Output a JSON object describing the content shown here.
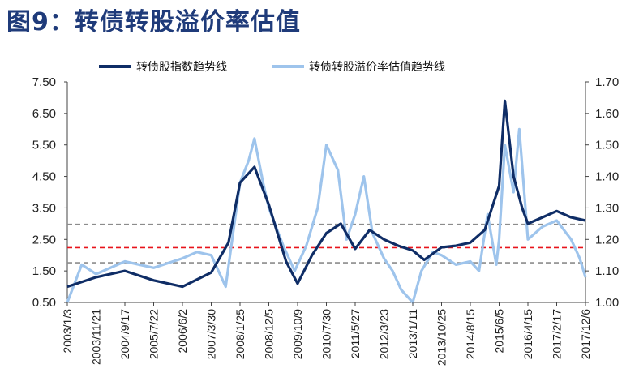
{
  "title": "图9：转债转股溢价率估值",
  "chart_data": {
    "type": "line",
    "legend": [
      "转债股指数趋势线",
      "转债转股溢价率估值趋势线"
    ],
    "legend_position": "top",
    "colors": {
      "series1": "#0f2d66",
      "series2": "#9ec4ec",
      "ref_gray": "#8c8c8c",
      "ref_red": "#e8141b"
    },
    "x_labels": [
      "2003/1/3",
      "2003/11/21",
      "2004/9/17",
      "2005/7/22",
      "2006/6/2",
      "2007/3/30",
      "2008/1/25",
      "2008/12/5",
      "2009/10/9",
      "2010/7/30",
      "2011/5/27",
      "2012/3/23",
      "2013/1/11",
      "2013/10/25",
      "2014/8/15",
      "2015/6/5",
      "2016/4/15",
      "2017/2/17",
      "2017/12/6"
    ],
    "y_left": {
      "ticks": [
        "7.50",
        "6.50",
        "5.50",
        "4.50",
        "3.50",
        "2.50",
        "1.50",
        "0.50"
      ],
      "range": [
        0.5,
        7.5
      ]
    },
    "y_right": {
      "ticks": [
        "1.70",
        "1.60",
        "1.50",
        "1.40",
        "1.30",
        "1.20",
        "1.10",
        "1.00"
      ],
      "range": [
        1.0,
        1.7
      ]
    },
    "reference_lines_left_axis": [
      {
        "value": 2.98,
        "color": "gray"
      },
      {
        "value": 2.24,
        "color": "red"
      },
      {
        "value": 1.76,
        "color": "gray"
      }
    ],
    "series": [
      {
        "name": "转债股指数趋势线",
        "axis": "left",
        "points": [
          [
            0,
            1.0
          ],
          [
            1,
            1.3
          ],
          [
            2,
            1.5
          ],
          [
            3,
            1.2
          ],
          [
            4,
            1.0
          ],
          [
            5,
            1.45
          ],
          [
            5.6,
            2.4
          ],
          [
            6.0,
            4.3
          ],
          [
            6.5,
            4.8
          ],
          [
            7.0,
            3.6
          ],
          [
            7.6,
            1.8
          ],
          [
            8,
            1.1
          ],
          [
            8.5,
            2.0
          ],
          [
            9,
            2.7
          ],
          [
            9.5,
            3.0
          ],
          [
            10,
            2.2
          ],
          [
            10.5,
            2.8
          ],
          [
            11,
            2.5
          ],
          [
            11.5,
            2.3
          ],
          [
            12,
            2.15
          ],
          [
            12.4,
            1.85
          ],
          [
            13,
            2.25
          ],
          [
            13.5,
            2.3
          ],
          [
            14,
            2.4
          ],
          [
            14.5,
            2.8
          ],
          [
            15,
            4.2
          ],
          [
            15.2,
            6.9
          ],
          [
            15.5,
            4.5
          ],
          [
            15.8,
            3.5
          ],
          [
            16,
            3.0
          ],
          [
            16.5,
            3.2
          ],
          [
            17,
            3.4
          ],
          [
            17.5,
            3.2
          ],
          [
            18,
            3.1
          ]
        ]
      },
      {
        "name": "转债转股溢价率估值趋势线",
        "axis": "right",
        "points": [
          [
            0,
            1.0
          ],
          [
            0.5,
            1.12
          ],
          [
            1,
            1.09
          ],
          [
            2,
            1.13
          ],
          [
            3,
            1.11
          ],
          [
            4,
            1.14
          ],
          [
            4.5,
            1.16
          ],
          [
            5,
            1.15
          ],
          [
            5.5,
            1.05
          ],
          [
            6,
            1.38
          ],
          [
            6.3,
            1.45
          ],
          [
            6.5,
            1.52
          ],
          [
            6.8,
            1.38
          ],
          [
            7.0,
            1.3
          ],
          [
            7.5,
            1.18
          ],
          [
            7.9,
            1.1
          ],
          [
            8.3,
            1.18
          ],
          [
            8.7,
            1.3
          ],
          [
            9,
            1.5
          ],
          [
            9.4,
            1.42
          ],
          [
            9.7,
            1.2
          ],
          [
            10,
            1.28
          ],
          [
            10.3,
            1.4
          ],
          [
            10.6,
            1.22
          ],
          [
            11,
            1.14
          ],
          [
            11.3,
            1.1
          ],
          [
            11.6,
            1.04
          ],
          [
            12,
            1.0
          ],
          [
            12.3,
            1.1
          ],
          [
            12.7,
            1.16
          ],
          [
            13,
            1.15
          ],
          [
            13.5,
            1.12
          ],
          [
            14,
            1.13
          ],
          [
            14.3,
            1.1
          ],
          [
            14.6,
            1.28
          ],
          [
            14.9,
            1.12
          ],
          [
            15,
            1.2
          ],
          [
            15.2,
            1.5
          ],
          [
            15.5,
            1.35
          ],
          [
            15.7,
            1.55
          ],
          [
            16,
            1.2
          ],
          [
            16.5,
            1.24
          ],
          [
            17,
            1.26
          ],
          [
            17.5,
            1.2
          ],
          [
            17.8,
            1.14
          ],
          [
            18,
            1.08
          ]
        ]
      }
    ]
  }
}
